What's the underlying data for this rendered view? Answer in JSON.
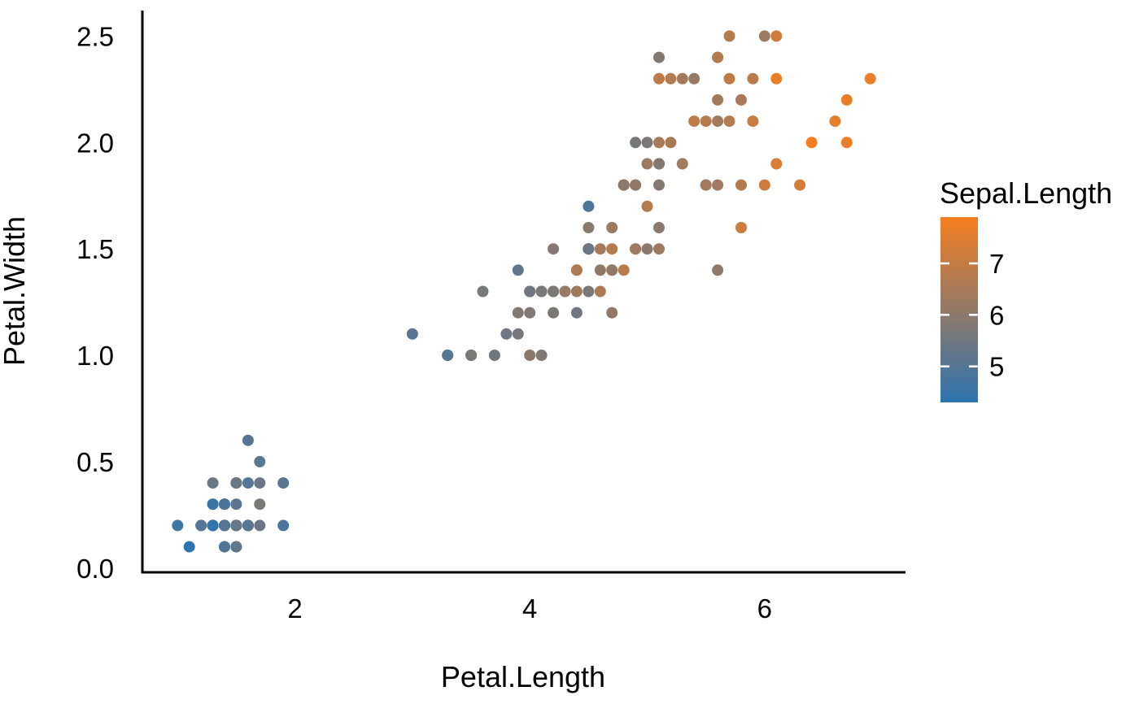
{
  "chart_data": {
    "type": "scatter",
    "title": "",
    "xlabel": "Petal.Length",
    "ylabel": "Petal.Width",
    "xlim": [
      0.7,
      7.2
    ],
    "ylim": [
      -0.02,
      2.62
    ],
    "grid": false,
    "background": "#ffffff",
    "axis_line_color": "#000000",
    "x_ticks": [
      {
        "value": 2,
        "label": "2"
      },
      {
        "value": 4,
        "label": "4"
      },
      {
        "value": 6,
        "label": "6"
      }
    ],
    "y_ticks": [
      {
        "value": 0.0,
        "label": "0.0"
      },
      {
        "value": 0.5,
        "label": "0.5"
      },
      {
        "value": 1.0,
        "label": "1.0"
      },
      {
        "value": 1.5,
        "label": "1.5"
      },
      {
        "value": 2.0,
        "label": "2.0"
      },
      {
        "value": 2.5,
        "label": "2.5"
      }
    ],
    "legend": {
      "title": "Sepal.Length",
      "type": "colorbar",
      "position": "right",
      "domain": [
        4.3,
        7.9
      ],
      "low_color": "#2E74B0",
      "high_color": "#F57E20",
      "ticks": [
        {
          "value": 5,
          "label": "5"
        },
        {
          "value": 6,
          "label": "6"
        },
        {
          "value": 7,
          "label": "7"
        }
      ]
    },
    "point_fields": [
      "Petal.Length",
      "Petal.Width",
      "Sepal.Length"
    ],
    "points": [
      [
        1.4,
        0.2,
        5.1
      ],
      [
        1.4,
        0.2,
        4.9
      ],
      [
        1.3,
        0.2,
        4.7
      ],
      [
        1.5,
        0.2,
        4.6
      ],
      [
        1.4,
        0.2,
        5.0
      ],
      [
        1.7,
        0.4,
        5.4
      ],
      [
        1.4,
        0.3,
        4.6
      ],
      [
        1.5,
        0.2,
        5.0
      ],
      [
        1.4,
        0.2,
        4.4
      ],
      [
        1.5,
        0.1,
        4.9
      ],
      [
        1.5,
        0.2,
        5.4
      ],
      [
        1.6,
        0.2,
        4.8
      ],
      [
        1.4,
        0.1,
        4.8
      ],
      [
        1.1,
        0.1,
        4.3
      ],
      [
        1.2,
        0.2,
        5.8
      ],
      [
        1.5,
        0.4,
        5.7
      ],
      [
        1.3,
        0.4,
        5.4
      ],
      [
        1.4,
        0.3,
        5.1
      ],
      [
        1.7,
        0.3,
        5.7
      ],
      [
        1.5,
        0.3,
        5.1
      ],
      [
        1.7,
        0.2,
        5.4
      ],
      [
        1.5,
        0.4,
        5.1
      ],
      [
        1.0,
        0.2,
        4.6
      ],
      [
        1.7,
        0.5,
        5.1
      ],
      [
        1.9,
        0.2,
        4.8
      ],
      [
        1.6,
        0.2,
        5.0
      ],
      [
        1.6,
        0.4,
        5.0
      ],
      [
        1.5,
        0.2,
        5.2
      ],
      [
        1.4,
        0.2,
        5.2
      ],
      [
        1.6,
        0.2,
        4.7
      ],
      [
        1.6,
        0.2,
        4.8
      ],
      [
        1.5,
        0.4,
        5.4
      ],
      [
        1.5,
        0.1,
        5.2
      ],
      [
        1.4,
        0.2,
        5.5
      ],
      [
        1.5,
        0.2,
        4.9
      ],
      [
        1.2,
        0.2,
        5.0
      ],
      [
        1.3,
        0.2,
        5.5
      ],
      [
        1.4,
        0.1,
        4.9
      ],
      [
        1.3,
        0.2,
        4.4
      ],
      [
        1.5,
        0.2,
        5.1
      ],
      [
        1.3,
        0.3,
        5.0
      ],
      [
        1.3,
        0.3,
        4.5
      ],
      [
        1.3,
        0.2,
        4.4
      ],
      [
        1.6,
        0.6,
        5.0
      ],
      [
        1.9,
        0.4,
        5.1
      ],
      [
        1.4,
        0.3,
        4.8
      ],
      [
        1.6,
        0.2,
        5.1
      ],
      [
        1.4,
        0.2,
        4.6
      ],
      [
        1.5,
        0.2,
        5.3
      ],
      [
        1.4,
        0.2,
        5.0
      ],
      [
        4.7,
        1.4,
        7.0
      ],
      [
        4.5,
        1.5,
        6.4
      ],
      [
        4.9,
        1.5,
        6.9
      ],
      [
        4.0,
        1.3,
        5.5
      ],
      [
        4.6,
        1.5,
        6.5
      ],
      [
        4.5,
        1.3,
        5.7
      ],
      [
        4.7,
        1.6,
        6.3
      ],
      [
        3.3,
        1.0,
        4.9
      ],
      [
        4.6,
        1.3,
        6.6
      ],
      [
        3.9,
        1.4,
        5.2
      ],
      [
        3.5,
        1.0,
        5.0
      ],
      [
        4.2,
        1.5,
        5.9
      ],
      [
        4.0,
        1.0,
        6.0
      ],
      [
        4.7,
        1.4,
        6.1
      ],
      [
        3.6,
        1.3,
        5.6
      ],
      [
        4.4,
        1.4,
        6.7
      ],
      [
        4.5,
        1.5,
        5.6
      ],
      [
        4.1,
        1.0,
        5.8
      ],
      [
        4.5,
        1.5,
        6.2
      ],
      [
        3.9,
        1.1,
        5.6
      ],
      [
        4.8,
        1.8,
        5.9
      ],
      [
        4.0,
        1.3,
        6.1
      ],
      [
        4.9,
        1.5,
        6.3
      ],
      [
        4.7,
        1.2,
        6.1
      ],
      [
        4.3,
        1.3,
        6.4
      ],
      [
        4.4,
        1.4,
        6.6
      ],
      [
        4.8,
        1.4,
        6.8
      ],
      [
        5.0,
        1.7,
        6.7
      ],
      [
        4.5,
        1.5,
        6.0
      ],
      [
        3.5,
        1.0,
        5.7
      ],
      [
        3.8,
        1.1,
        5.5
      ],
      [
        3.7,
        1.0,
        5.5
      ],
      [
        3.9,
        1.2,
        5.8
      ],
      [
        5.1,
        1.6,
        6.0
      ],
      [
        4.5,
        1.5,
        5.4
      ],
      [
        4.5,
        1.6,
        6.0
      ],
      [
        4.7,
        1.5,
        6.7
      ],
      [
        4.4,
        1.3,
        6.3
      ],
      [
        4.1,
        1.3,
        5.6
      ],
      [
        4.0,
        1.3,
        5.5
      ],
      [
        4.4,
        1.2,
        5.5
      ],
      [
        4.6,
        1.4,
        6.1
      ],
      [
        4.0,
        1.2,
        5.8
      ],
      [
        3.3,
        1.0,
        5.0
      ],
      [
        4.2,
        1.3,
        5.6
      ],
      [
        4.2,
        1.2,
        5.7
      ],
      [
        4.2,
        1.3,
        5.7
      ],
      [
        4.3,
        1.3,
        6.2
      ],
      [
        3.0,
        1.1,
        5.1
      ],
      [
        4.1,
        1.3,
        5.7
      ],
      [
        6.0,
        2.5,
        6.3
      ],
      [
        5.1,
        1.9,
        5.8
      ],
      [
        5.9,
        2.1,
        7.1
      ],
      [
        5.6,
        1.8,
        6.3
      ],
      [
        5.8,
        2.2,
        6.5
      ],
      [
        6.6,
        2.1,
        7.6
      ],
      [
        4.5,
        1.7,
        4.9
      ],
      [
        6.3,
        1.8,
        7.3
      ],
      [
        5.8,
        1.8,
        6.7
      ],
      [
        6.1,
        2.5,
        7.2
      ],
      [
        5.1,
        2.0,
        6.5
      ],
      [
        5.3,
        1.9,
        6.4
      ],
      [
        5.5,
        2.1,
        6.8
      ],
      [
        5.0,
        2.0,
        5.7
      ],
      [
        5.1,
        2.4,
        5.8
      ],
      [
        5.3,
        2.3,
        6.4
      ],
      [
        5.5,
        1.8,
        6.5
      ],
      [
        6.7,
        2.2,
        7.7
      ],
      [
        6.9,
        2.3,
        7.7
      ],
      [
        5.0,
        1.5,
        6.0
      ],
      [
        5.7,
        2.3,
        6.9
      ],
      [
        4.9,
        2.0,
        5.6
      ],
      [
        6.7,
        2.0,
        7.7
      ],
      [
        4.9,
        1.8,
        6.3
      ],
      [
        5.7,
        2.1,
        6.7
      ],
      [
        6.0,
        1.8,
        7.2
      ],
      [
        4.8,
        1.8,
        6.2
      ],
      [
        4.9,
        1.8,
        6.1
      ],
      [
        5.6,
        2.1,
        6.4
      ],
      [
        5.8,
        1.6,
        7.2
      ],
      [
        6.1,
        1.9,
        7.4
      ],
      [
        6.4,
        2.0,
        7.9
      ],
      [
        5.6,
        2.2,
        6.4
      ],
      [
        5.1,
        1.5,
        6.3
      ],
      [
        5.6,
        1.4,
        6.1
      ],
      [
        6.1,
        2.3,
        7.7
      ],
      [
        5.6,
        2.4,
        6.3
      ],
      [
        5.5,
        1.8,
        6.4
      ],
      [
        4.8,
        1.8,
        6.0
      ],
      [
        5.4,
        2.1,
        6.9
      ],
      [
        5.6,
        2.4,
        6.7
      ],
      [
        5.1,
        2.3,
        6.9
      ],
      [
        5.1,
        1.9,
        5.8
      ],
      [
        5.9,
        2.3,
        6.8
      ],
      [
        5.7,
        2.5,
        6.7
      ],
      [
        5.2,
        2.3,
        6.7
      ],
      [
        5.0,
        1.9,
        6.3
      ],
      [
        5.2,
        2.0,
        6.5
      ],
      [
        5.4,
        2.3,
        6.2
      ],
      [
        5.1,
        1.8,
        5.9
      ]
    ]
  }
}
